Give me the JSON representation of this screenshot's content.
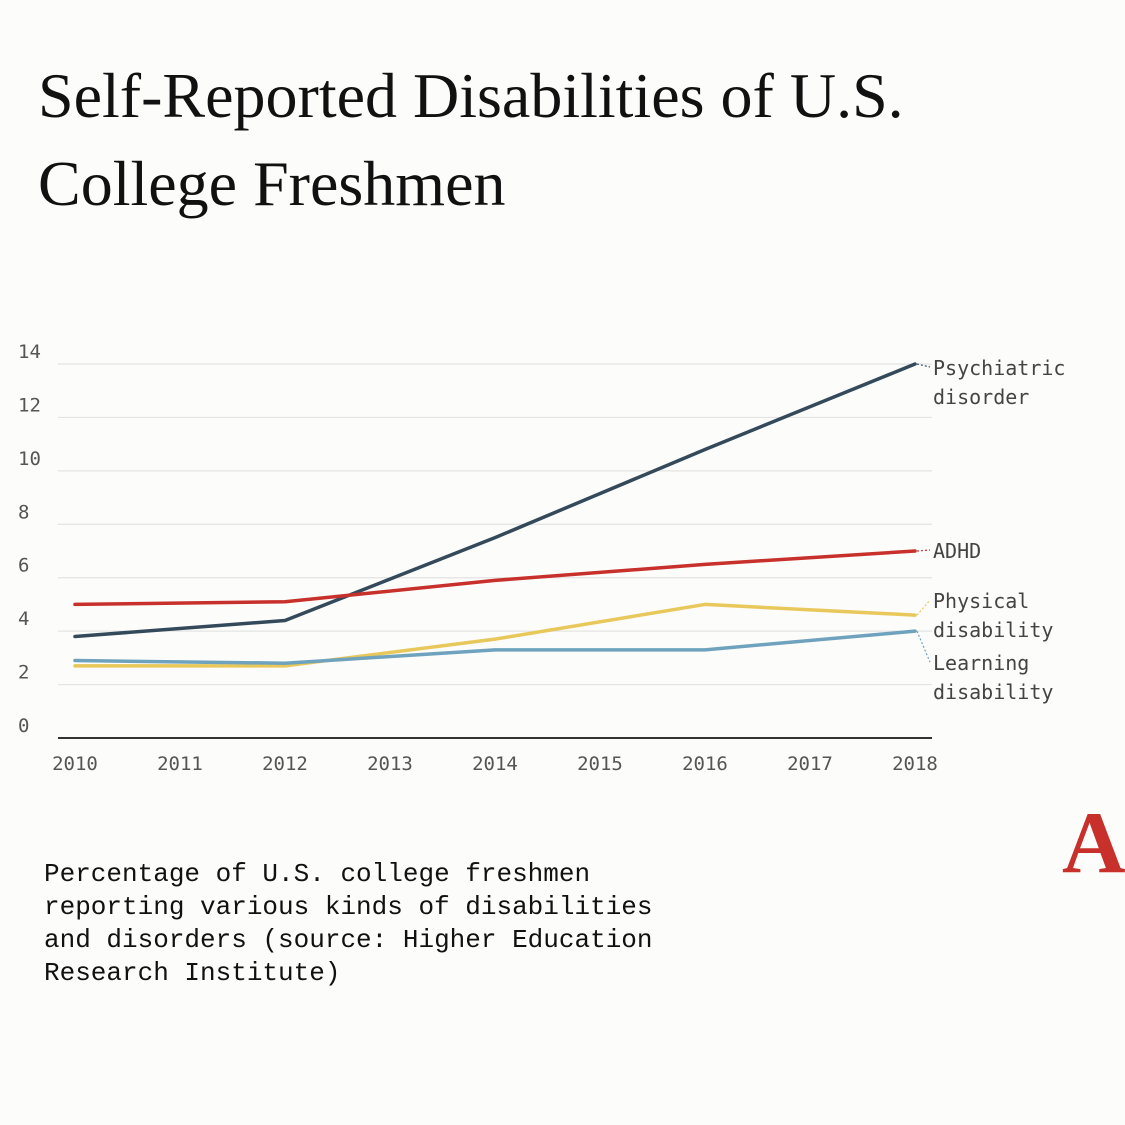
{
  "title": "Self-Reported Disabilities of U.S. College Freshmen",
  "caption": "Percentage of U.S. college freshmen reporting various kinds of disabilities and disorders (source: Higher Education Research Institute)",
  "logo": "A",
  "chart_data": {
    "type": "line",
    "title": "Self-Reported Disabilities of U.S. College Freshmen",
    "xlabel": "",
    "ylabel": "",
    "x": [
      2010,
      2012,
      2014,
      2016,
      2018
    ],
    "x_ticks": [
      "2010",
      "2011",
      "2012",
      "2013",
      "2014",
      "2015",
      "2016",
      "2017",
      "2018"
    ],
    "y_ticks": [
      "0",
      "2",
      "4",
      "6",
      "8",
      "10",
      "12",
      "14"
    ],
    "xlim": [
      2010,
      2018
    ],
    "ylim": [
      0,
      14
    ],
    "grid": true,
    "series": [
      {
        "name": "Psychiatric disorder",
        "label_lines": [
          "Psychiatric",
          "disorder"
        ],
        "color": "#344a5a",
        "values": [
          3.8,
          4.4,
          7.5,
          10.8,
          14.0
        ]
      },
      {
        "name": "ADHD",
        "label_lines": [
          "ADHD"
        ],
        "color": "#c8312b",
        "values": [
          5.0,
          5.1,
          5.9,
          6.5,
          7.0
        ]
      },
      {
        "name": "Physical disability",
        "label_lines": [
          "Physical",
          "disability"
        ],
        "color": "#e8c85a",
        "values": [
          2.7,
          2.7,
          3.7,
          5.0,
          4.6
        ]
      },
      {
        "name": "Learning disability",
        "label_lines": [
          "Learning",
          "disability"
        ],
        "color": "#6fa3bd",
        "values": [
          2.9,
          2.8,
          3.3,
          3.3,
          4.0
        ]
      }
    ]
  }
}
